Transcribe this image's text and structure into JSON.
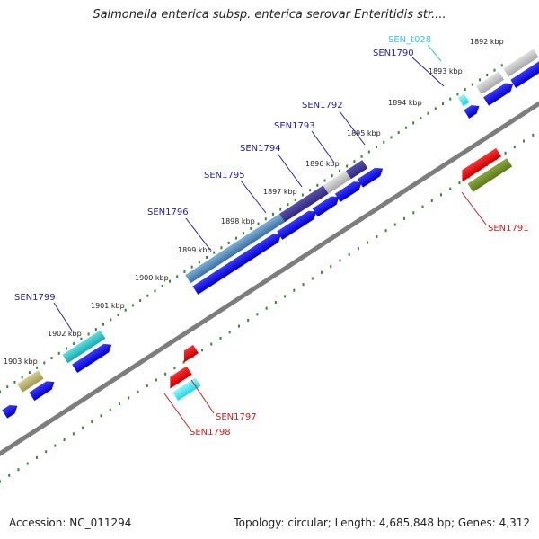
{
  "title": "Salmonella enterica subsp. enterica serovar Enteritidis str....",
  "footer": {
    "accession": "Accession: NC_011294",
    "summary": "Topology: circular; Length: 4,685,848 bp; Genes: 4,312"
  },
  "colors": {
    "backbone": "#7d7d7d",
    "tick": "#2e8b2e",
    "forward_label": "#1f1fa8",
    "reverse_label": "#d11b1b",
    "trna_label": "#33c8e8",
    "cds": "#0a0aee"
  },
  "ticks": [
    {
      "label": "1892 kbp"
    },
    {
      "label": "1893 kbp"
    },
    {
      "label": "1894 kbp"
    },
    {
      "label": "1895 kbp"
    },
    {
      "label": "1896 kbp"
    },
    {
      "label": "1897 kbp"
    },
    {
      "label": "1898 kbp"
    },
    {
      "label": "1899 kbp"
    },
    {
      "label": "1900 kbp"
    },
    {
      "label": "1901 kbp"
    },
    {
      "label": "1902 kbp"
    },
    {
      "label": "1903 kbp"
    }
  ],
  "gene_labels": [
    {
      "text": "SEN_t028",
      "strand": "trna"
    },
    {
      "text": "SEN1790",
      "strand": "forward"
    },
    {
      "text": "SEN1792",
      "strand": "forward"
    },
    {
      "text": "SEN1793",
      "strand": "forward"
    },
    {
      "text": "SEN1794",
      "strand": "forward"
    },
    {
      "text": "SEN1795",
      "strand": "forward"
    },
    {
      "text": "SEN1796",
      "strand": "forward"
    },
    {
      "text": "SEN1799",
      "strand": "forward"
    },
    {
      "text": "SEN1791",
      "strand": "reverse"
    },
    {
      "text": "SEN1797",
      "strand": "reverse"
    },
    {
      "text": "SEN1798",
      "strand": "reverse"
    }
  ]
}
